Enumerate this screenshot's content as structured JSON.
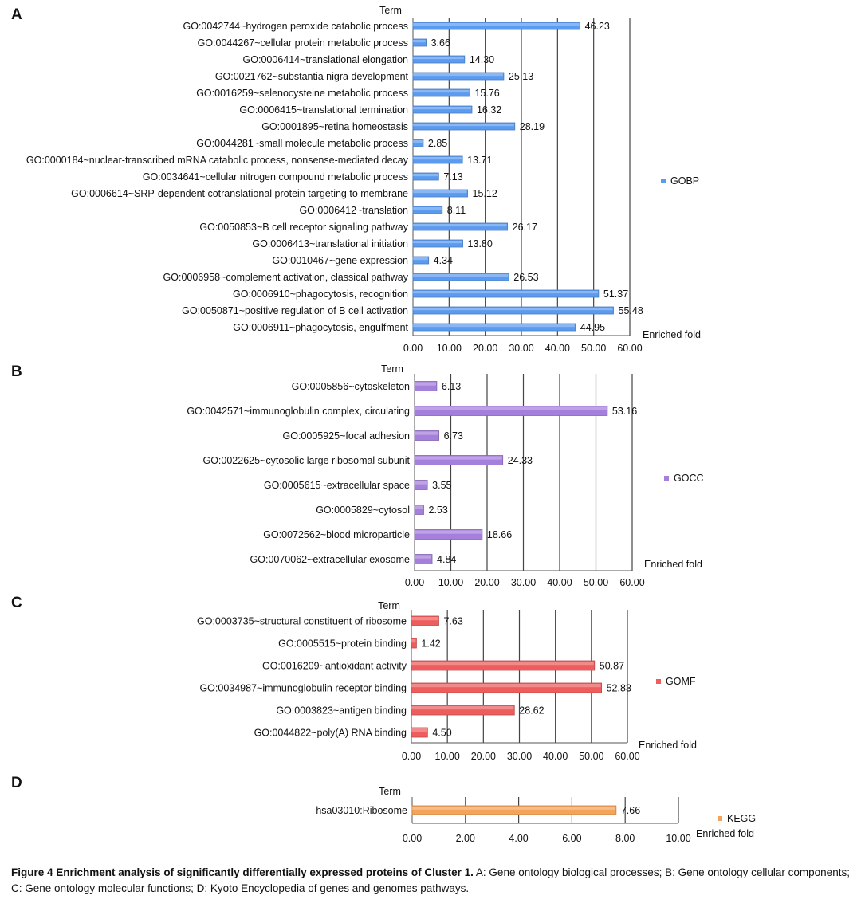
{
  "chart_data": [
    {
      "type": "bar",
      "orientation": "horizontal",
      "panel_label": "A",
      "ylabel": "Term",
      "xlabel": "Enriched fold",
      "xlim": [
        0,
        60
      ],
      "xticks": [
        "0.00",
        "10.00",
        "20.00",
        "30.00",
        "40.00",
        "50.00",
        "60.00"
      ],
      "grid": true,
      "legend_position": "right",
      "categories": [
        "GO:0042744~hydrogen peroxide catabolic process",
        "GO:0044267~cellular protein metabolic process",
        "GO:0006414~translational elongation",
        "GO:0021762~substantia nigra development",
        "GO:0016259~selenocysteine metabolic process",
        "GO:0006415~translational termination",
        "GO:0001895~retina homeostasis",
        "GO:0044281~small molecule metabolic process",
        "GO:0000184~nuclear-transcribed mRNA catabolic process, nonsense-mediated decay",
        "GO:0034641~cellular nitrogen compound metabolic process",
        "GO:0006614~SRP-dependent cotranslational protein targeting to membrane",
        "GO:0006412~translation",
        "GO:0050853~B cell receptor signaling pathway",
        "GO:0006413~translational initiation",
        "GO:0010467~gene expression",
        "GO:0006958~complement activation, classical pathway",
        "GO:0006910~phagocytosis, recognition",
        "GO:0050871~positive regulation of B cell activation",
        "GO:0006911~phagocytosis, engulfment"
      ],
      "series": [
        {
          "name": "GOBP",
          "color": "#5b9bef",
          "values": [
            46.23,
            3.66,
            14.3,
            25.13,
            15.76,
            16.32,
            28.19,
            2.85,
            13.71,
            7.13,
            15.12,
            8.11,
            26.17,
            13.8,
            4.34,
            26.53,
            51.37,
            55.48,
            44.95
          ],
          "labels": [
            "46.23",
            "3.66",
            "14.30",
            "25.13",
            "15.76",
            "16.32",
            "28.19",
            "2.85",
            "13.71",
            "7.13",
            "15.12",
            "8.11",
            "26.17",
            "13.80",
            "4.34",
            "26.53",
            "51.37",
            "55.48",
            "44.95"
          ]
        }
      ]
    },
    {
      "type": "bar",
      "orientation": "horizontal",
      "panel_label": "B",
      "ylabel": "Term",
      "xlabel": "Enriched fold",
      "xlim": [
        0,
        60
      ],
      "xticks": [
        "0.00",
        "10.00",
        "20.00",
        "30.00",
        "40.00",
        "50.00",
        "60.00"
      ],
      "grid": true,
      "legend_position": "right",
      "categories": [
        "GO:0005856~cytoskeleton",
        "GO:0042571~immunoglobulin complex, circulating",
        "GO:0005925~focal adhesion",
        "GO:0022625~cytosolic large ribosomal subunit",
        "GO:0005615~extracellular space",
        "GO:0005829~cytosol",
        "GO:0072562~blood microparticle",
        "GO:0070062~extracellular exosome"
      ],
      "series": [
        {
          "name": "GOCC",
          "color": "#a57fdc",
          "values": [
            6.13,
            53.16,
            6.73,
            24.33,
            3.55,
            2.53,
            18.66,
            4.84
          ],
          "labels": [
            "6.13",
            "53.16",
            "6.73",
            "24.33",
            "3.55",
            "2.53",
            "18.66",
            "4.84"
          ]
        }
      ]
    },
    {
      "type": "bar",
      "orientation": "horizontal",
      "panel_label": "C",
      "ylabel": "Term",
      "xlabel": "Enriched fold",
      "xlim": [
        0,
        60
      ],
      "xticks": [
        "0.00",
        "10.00",
        "20.00",
        "30.00",
        "40.00",
        "50.00",
        "60.00"
      ],
      "grid": true,
      "legend_position": "right",
      "categories": [
        "GO:0003735~structural constituent of ribosome",
        "GO:0005515~protein binding",
        "GO:0016209~antioxidant activity",
        "GO:0034987~immunoglobulin receptor binding",
        "GO:0003823~antigen binding",
        "GO:0044822~poly(A) RNA binding"
      ],
      "series": [
        {
          "name": "GOMF",
          "color": "#ee5d5d",
          "values": [
            7.63,
            1.42,
            50.87,
            52.83,
            28.62,
            4.5
          ],
          "labels": [
            "7.63",
            "1.42",
            "50.87",
            "52.83",
            "28.62",
            "4.50"
          ]
        }
      ]
    },
    {
      "type": "bar",
      "orientation": "horizontal",
      "panel_label": "D",
      "ylabel": "Term",
      "xlabel": "Enriched fold",
      "xlim": [
        0,
        10
      ],
      "xticks": [
        "0.00",
        "2.00",
        "4.00",
        "6.00",
        "8.00",
        "10.00"
      ],
      "grid": true,
      "legend_position": "right",
      "categories": [
        "hsa03010:Ribosome"
      ],
      "series": [
        {
          "name": "KEGG",
          "color": "#f4a45a",
          "values": [
            7.66
          ],
          "labels": [
            "7.66"
          ]
        }
      ]
    }
  ],
  "caption": {
    "title": "Figure 4  Enrichment analysis of significantly differentially expressed proteins of Cluster 1.",
    "text": " A: Gene ontology biological processes; B: Gene ontology cellular components; C: Gene ontology molecular functions; D: Kyoto Encyclopedia of genes and genomes pathways."
  }
}
